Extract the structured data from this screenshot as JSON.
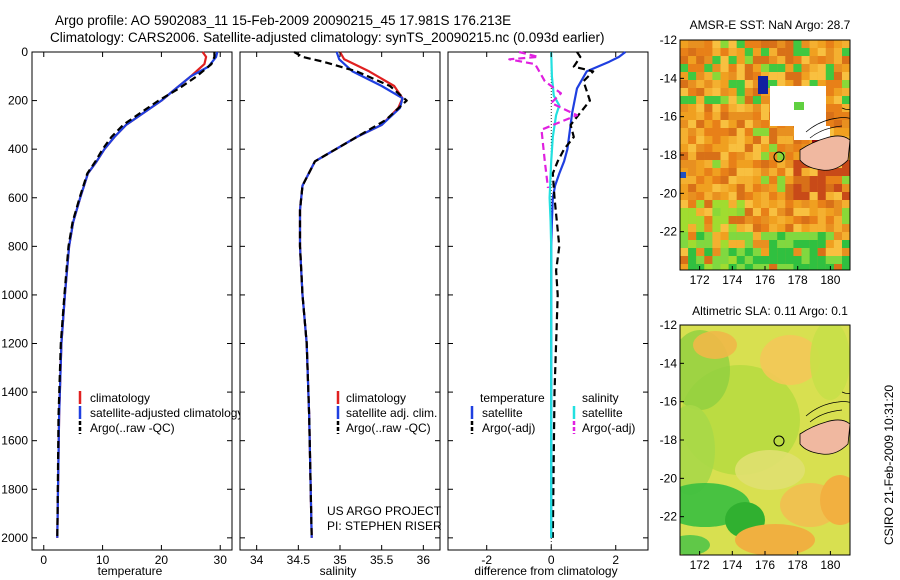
{
  "header": {
    "line1": "Argo profile: AO 5902083_11 15-Feb-2009 20090215_45 17.981S 176.213E",
    "line2": "Climatology: CARS2006. Satellite-adjusted climatology: synTS_20090215.nc (0.093d earlier)"
  },
  "credit": {
    "line1": "US ARGO PROJECT",
    "line2": "PI: STEPHEN RISER"
  },
  "timestamp": "CSIRO 21-Feb-2009 10:31:20",
  "colors": {
    "clim": "#e02020",
    "sat": "#1f3fe0",
    "argo": "#000000",
    "sal_sat": "#22e0e0",
    "sal_argo": "#e020e0"
  },
  "chart_data": [
    {
      "type": "line",
      "xlabel": "temperature",
      "ylabel": "",
      "xlim": [
        -2,
        32
      ],
      "ylim": [
        2050,
        0
      ],
      "xticks": [
        0,
        10,
        20,
        30
      ],
      "yticks": [
        0,
        200,
        400,
        600,
        800,
        1000,
        1200,
        1400,
        1600,
        1800,
        2000
      ],
      "legend": [
        "climatology",
        "satellite-adjusted climatology",
        "Argo(..raw -QC)"
      ],
      "series": [
        {
          "name": "climatology",
          "style": "solid",
          "color": "clim",
          "x": [
            27.0,
            27.6,
            27.3,
            25.0,
            22.5,
            20.0,
            17.0,
            14.0,
            12.0,
            10.3,
            9.0,
            7.5,
            6.2,
            5.0,
            4.3,
            3.6,
            3.0,
            2.6,
            2.3
          ],
          "y": [
            0,
            20,
            50,
            100,
            150,
            200,
            250,
            300,
            350,
            400,
            450,
            500,
            600,
            700,
            800,
            1000,
            1200,
            1500,
            2000
          ]
        },
        {
          "name": "satellite-adjusted climatology",
          "style": "solid",
          "color": "sat",
          "x": [
            29.5,
            29.3,
            28.0,
            25.0,
            22.5,
            20.0,
            17.0,
            14.0,
            12.0,
            10.3,
            9.0,
            7.5,
            6.2,
            5.0,
            4.3,
            3.6,
            3.0,
            2.6,
            2.3
          ],
          "y": [
            0,
            20,
            60,
            100,
            150,
            200,
            250,
            300,
            350,
            400,
            450,
            500,
            600,
            700,
            800,
            1000,
            1200,
            1500,
            2000
          ]
        },
        {
          "name": "Argo(..raw -QC)",
          "style": "dashed",
          "color": "argo",
          "x": [
            29.0,
            29.0,
            28.5,
            26.0,
            23.0,
            19.5,
            16.5,
            13.5,
            11.5,
            10.0,
            8.8,
            7.4,
            6.1,
            4.9,
            4.2,
            3.5,
            2.9,
            2.5,
            2.3
          ],
          "y": [
            0,
            20,
            50,
            100,
            150,
            200,
            250,
            300,
            350,
            400,
            450,
            500,
            600,
            700,
            800,
            1000,
            1200,
            1500,
            2000
          ]
        }
      ]
    },
    {
      "type": "line",
      "xlabel": "salinity",
      "xlim": [
        33.8,
        36.2
      ],
      "ylim": [
        2050,
        0
      ],
      "xticks": [
        34,
        34.5,
        35,
        35.5,
        36
      ],
      "legend": [
        "climatology",
        "satellite adj. clim.",
        "Argo(..raw -QC)"
      ],
      "series": [
        {
          "name": "climatology",
          "style": "solid",
          "color": "clim",
          "x": [
            35.0,
            35.05,
            35.35,
            35.65,
            35.75,
            35.7,
            35.5,
            35.2,
            34.95,
            34.7,
            34.55,
            34.52,
            34.52,
            34.55,
            34.6,
            34.63,
            34.66
          ],
          "y": [
            0,
            30,
            80,
            140,
            190,
            230,
            300,
            350,
            400,
            450,
            550,
            650,
            800,
            1000,
            1200,
            1500,
            2000
          ]
        },
        {
          "name": "satellite adj. clim.",
          "style": "solid",
          "color": "sat",
          "x": [
            34.96,
            34.99,
            35.15,
            35.5,
            35.75,
            35.72,
            35.5,
            35.2,
            34.95,
            34.7,
            34.55,
            34.52,
            34.52,
            34.55,
            34.6,
            34.63,
            34.66
          ],
          "y": [
            0,
            30,
            80,
            140,
            190,
            230,
            300,
            350,
            400,
            450,
            550,
            650,
            800,
            1000,
            1200,
            1500,
            2000
          ]
        },
        {
          "name": "Argo(..raw -QC)",
          "style": "dashed",
          "color": "argo",
          "x": [
            34.45,
            34.55,
            34.8,
            35.2,
            35.6,
            35.8,
            35.55,
            35.2,
            34.95,
            34.7,
            34.55,
            34.52,
            34.52,
            34.55,
            34.6,
            34.63,
            34.66
          ],
          "y": [
            0,
            20,
            40,
            80,
            140,
            200,
            280,
            350,
            400,
            450,
            550,
            650,
            800,
            1000,
            1200,
            1500,
            2000
          ]
        }
      ]
    },
    {
      "type": "line",
      "xlabel": "difference from climatology",
      "xlim": [
        -3.2,
        3.0
      ],
      "ylim": [
        2050,
        0
      ],
      "xticks": [
        -2,
        0,
        2
      ],
      "legend_titles": [
        "temperature",
        "salinity"
      ],
      "legend": [
        "satellite",
        "Argo(-adj)",
        "satellite",
        "Argo(-adj)"
      ],
      "series": [
        {
          "name": "temperature satellite",
          "style": "solid",
          "color": "sat",
          "x": [
            2.3,
            2.1,
            1.8,
            1.1,
            0.8,
            0.65,
            0.55,
            0.5,
            0.4,
            0.25,
            0.12,
            0.05,
            0.02,
            0.0,
            0.0,
            0.0
          ],
          "y": [
            0,
            20,
            40,
            80,
            150,
            250,
            350,
            400,
            450,
            500,
            550,
            600,
            700,
            800,
            1200,
            2000
          ]
        },
        {
          "name": "temperature Argo(-adj)",
          "style": "dashed",
          "color": "argo",
          "x": [
            0.8,
            0.9,
            0.7,
            1.3,
            1.0,
            1.2,
            0.6,
            0.7,
            0.4,
            0.2,
            0.05,
            0.1,
            0.25,
            0.15,
            0.2,
            0.1,
            0.05
          ],
          "y": [
            0,
            20,
            60,
            80,
            120,
            200,
            300,
            350,
            400,
            450,
            500,
            600,
            800,
            900,
            1000,
            1400,
            2000
          ]
        },
        {
          "name": "salinity satellite",
          "style": "solid",
          "color": "sal_sat",
          "x": [
            0.0,
            0.02,
            0.08,
            0.25,
            0.15,
            0.05,
            0.0,
            -0.05,
            -0.02,
            0.0,
            0.0
          ],
          "y": [
            0,
            100,
            180,
            220,
            260,
            350,
            450,
            600,
            700,
            800,
            2000
          ]
        },
        {
          "name": "salinity Argo(-adj)",
          "style": "dashed",
          "color": "sal_argo",
          "x": [
            -1.0,
            -0.4,
            -1.3,
            -0.5,
            -0.2,
            0.3,
            0.0,
            0.8,
            -0.3,
            -0.2,
            -0.1
          ],
          "y": [
            0,
            20,
            30,
            50,
            120,
            170,
            210,
            260,
            320,
            450,
            560
          ]
        }
      ]
    },
    {
      "type": "heatmap",
      "title": "AMSR-E SST: NaN Argo: 28.7",
      "xlim": [
        170.8,
        181.2
      ],
      "ylim": [
        -24,
        -12
      ],
      "xticks": [
        172,
        174,
        176,
        178,
        180
      ],
      "yticks": [
        -12,
        -14,
        -16,
        -18,
        -20,
        -22
      ],
      "marker": {
        "lon": 176.213,
        "lat": -17.981
      }
    },
    {
      "type": "heatmap",
      "title": "Altimetric SLA: 0.11 Argo: 0.1",
      "xlim": [
        170.8,
        181.2
      ],
      "ylim": [
        -24,
        -12
      ],
      "xticks": [
        172,
        174,
        176,
        178,
        180
      ],
      "yticks": [
        -12,
        -14,
        -16,
        -18,
        -20,
        -22
      ],
      "marker": {
        "lon": 176.213,
        "lat": -17.981
      }
    }
  ]
}
